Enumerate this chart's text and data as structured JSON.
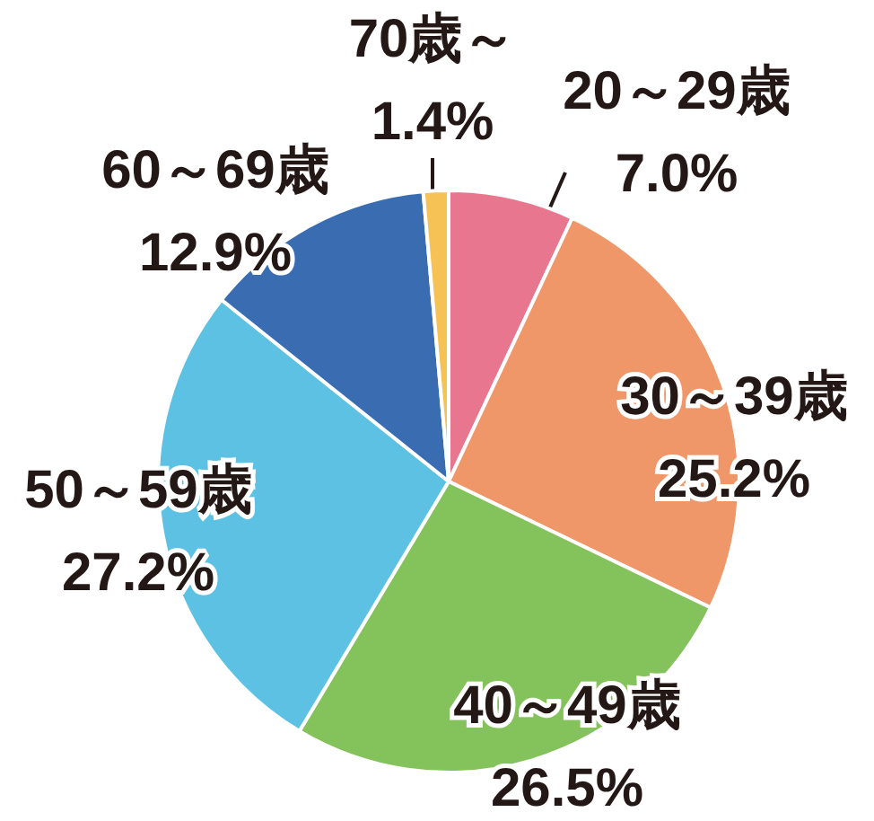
{
  "chart_data": {
    "type": "pie",
    "categories": [
      "20～29歳",
      "30～39歳",
      "40～49歳",
      "50～59歳",
      "60～69歳",
      "70歳～"
    ],
    "values": [
      7.0,
      25.2,
      26.5,
      27.2,
      12.9,
      1.4
    ],
    "value_labels": [
      "7.0%",
      "25.2%",
      "26.5%",
      "27.2%",
      "12.9%",
      "1.4%"
    ],
    "colors": [
      "#e8768f",
      "#f0976a",
      "#84c25c",
      "#5dc1e3",
      "#3a6cb2",
      "#f6c256"
    ]
  }
}
